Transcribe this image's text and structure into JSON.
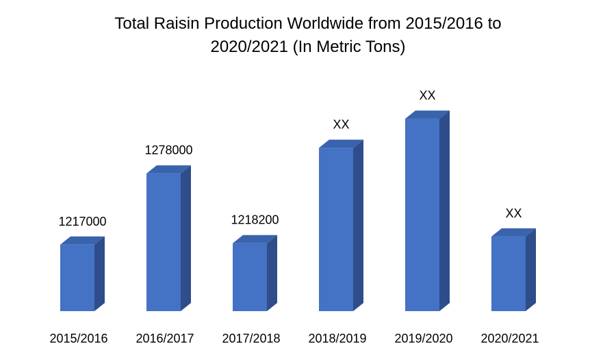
{
  "chart_data": {
    "type": "bar",
    "title": "Total Raisin Production Worldwide from 2015/2016 to\n2020/2021 (In Metric Tons)",
    "categories": [
      "2015/2016",
      "2016/2017",
      "2017/2018",
      "2018/2019",
      "2019/2020",
      "2020/2021"
    ],
    "values": [
      1217000,
      1278000,
      1218200,
      1300000,
      1325000,
      1224000
    ],
    "data_labels": [
      "1217000",
      "1278000",
      "1218200",
      "XX",
      "XX",
      "XX"
    ],
    "ylim": [
      1160000,
      1340000
    ],
    "grid": false,
    "legend": "none",
    "style": "3d-column",
    "colors": {
      "front": "#4472C4",
      "side": "#2E4D8A",
      "top": "#3A63AD"
    }
  }
}
